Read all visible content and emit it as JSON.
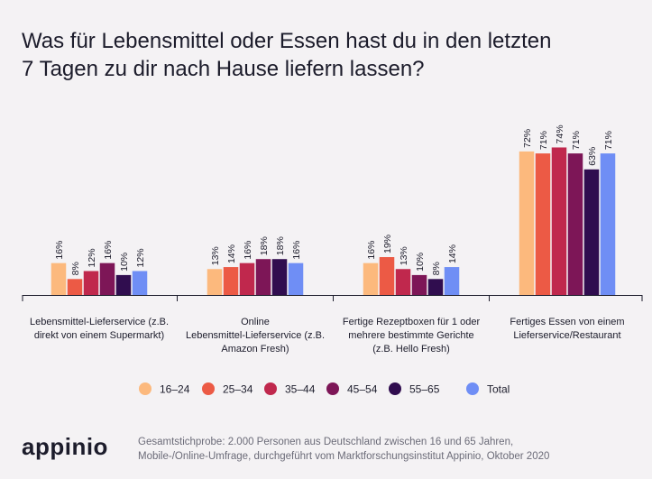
{
  "title_line1": "Was für Lebensmittel oder Essen hast du in den letzten",
  "title_line2": "7 Tagen zu dir nach Hause liefern lassen?",
  "logo": "appinio",
  "footnote_line1": "Gesamtstichprobe: 2.000 Personen aus Deutschland zwischen 16 und 65 Jahren,",
  "footnote_line2": "Mobile-/Online-Umfrage, durchgeführt vom Marktforschungsinstitut Appinio, Oktober 2020",
  "chart_data": {
    "type": "bar",
    "title": "Was für Lebensmittel oder Essen hast du in den letzten 7 Tagen zu dir nach Hause liefern lassen?",
    "unit": "%",
    "ylim": [
      0,
      100
    ],
    "grid": false,
    "legend_position": "bottom",
    "categories": [
      [
        "Lebensmittel-Lieferservice (z.B.",
        "direkt von einem Supermarkt)"
      ],
      [
        "Online",
        "Lebensmittel-Lieferservice (z.B.",
        "Amazon Fresh)"
      ],
      [
        "Fertige Rezeptboxen für 1 oder",
        "mehrere bestimmte Gerichte",
        "(z.B. Hello Fresh)"
      ],
      [
        "Fertiges Essen von einem",
        "Lieferservice/Restaurant"
      ]
    ],
    "series": [
      {
        "name": "16–24",
        "color": "#fcb97d",
        "values": [
          16,
          13,
          16,
          72
        ]
      },
      {
        "name": "25–34",
        "color": "#ec5a45",
        "values": [
          8,
          14,
          19,
          71
        ]
      },
      {
        "name": "35–44",
        "color": "#c0284d",
        "values": [
          12,
          16,
          13,
          74
        ]
      },
      {
        "name": "45–54",
        "color": "#7d1657",
        "values": [
          16,
          18,
          10,
          71
        ]
      },
      {
        "name": "55–65",
        "color": "#300d4f",
        "values": [
          10,
          18,
          8,
          63
        ]
      },
      {
        "name": "Total",
        "color": "#6f8ef5",
        "values": [
          12,
          16,
          14,
          71
        ]
      }
    ]
  }
}
